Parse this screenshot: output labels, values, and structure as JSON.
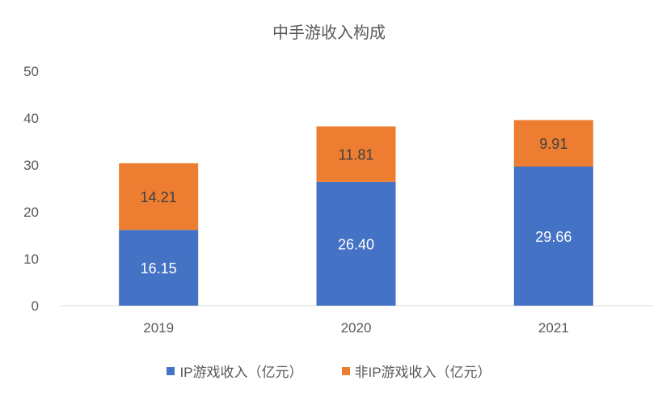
{
  "chart_data": {
    "type": "bar",
    "stacked": true,
    "title": "中手游收入构成",
    "categories": [
      "2019",
      "2020",
      "2021"
    ],
    "series": [
      {
        "name": "IP游戏收入（亿元）",
        "values": [
          16.15,
          26.4,
          29.66
        ],
        "labels": [
          "16.15",
          "26.40",
          "29.66"
        ],
        "color": "#4472C4"
      },
      {
        "name": "非IP游戏收入（亿元）",
        "values": [
          14.21,
          11.81,
          9.91
        ],
        "labels": [
          "14.21",
          "11.81",
          "9.91"
        ],
        "color": "#ED7D31"
      }
    ],
    "ylim": [
      0,
      50
    ],
    "yticks": [
      "0",
      "10",
      "20",
      "30",
      "40",
      "50"
    ],
    "grid": false,
    "legend": "bottom"
  }
}
